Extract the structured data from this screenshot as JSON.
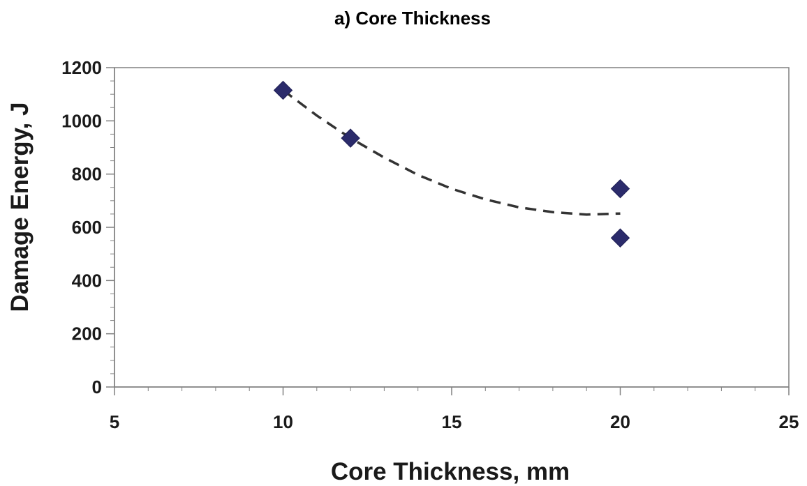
{
  "chart_data": {
    "type": "scatter",
    "title": "a) Core Thickness",
    "xlabel": "Core Thickness, mm",
    "ylabel": "Damage Energy, J",
    "xlim": [
      5,
      25
    ],
    "ylim": [
      0,
      1200
    ],
    "xticks": [
      5,
      10,
      15,
      20,
      25
    ],
    "yticks": [
      0,
      200,
      400,
      600,
      800,
      1000,
      1200
    ],
    "x_minor_step": 1,
    "y_minor_step": 50,
    "grid": false,
    "legend": "none",
    "series": [
      {
        "marker": "diamond",
        "color": "#2b2b6b",
        "points": [
          {
            "x": 10,
            "y": 1115
          },
          {
            "x": 12,
            "y": 935
          },
          {
            "x": 20,
            "y": 745
          },
          {
            "x": 20,
            "y": 560
          }
        ]
      }
    ],
    "trendline": {
      "style": "dashed",
      "color": "#333333",
      "points": [
        {
          "x": 10,
          "y": 1115
        },
        {
          "x": 11,
          "y": 1020
        },
        {
          "x": 12,
          "y": 935
        },
        {
          "x": 13,
          "y": 862
        },
        {
          "x": 14,
          "y": 797
        },
        {
          "x": 15,
          "y": 745
        },
        {
          "x": 16,
          "y": 705
        },
        {
          "x": 17,
          "y": 675
        },
        {
          "x": 18,
          "y": 657
        },
        {
          "x": 19,
          "y": 648
        },
        {
          "x": 20,
          "y": 652
        }
      ]
    }
  }
}
